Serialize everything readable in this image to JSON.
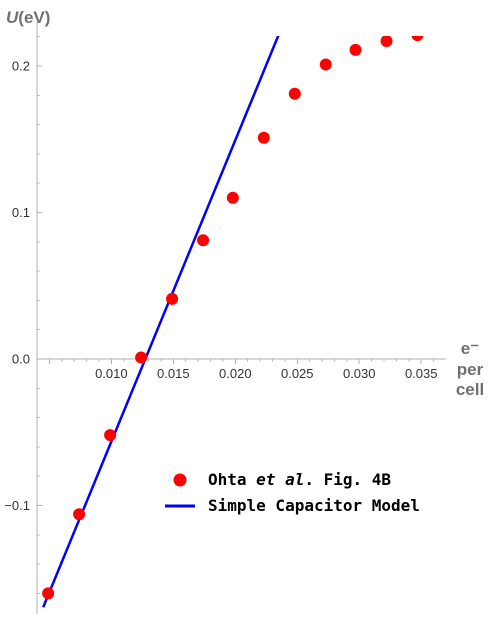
{
  "chart_data": {
    "type": "scatter",
    "xlabel_lines": [
      "e⁻",
      "per",
      "cell"
    ],
    "ylabel": {
      "var": "U",
      "unit": "(eV)"
    },
    "xlim": [
      0.004,
      0.037
    ],
    "ylim": [
      -0.17,
      0.23
    ],
    "x_ticks": [
      0.01,
      0.015,
      0.02,
      0.025,
      0.03,
      0.035
    ],
    "x_tick_labels": [
      "0.010",
      "0.015",
      "0.020",
      "0.025",
      "0.030",
      "0.035"
    ],
    "y_ticks": [
      -0.1,
      0.0,
      0.1,
      0.2
    ],
    "y_tick_labels": [
      "−0.1",
      "0.0",
      "0.1",
      "0.2"
    ],
    "grid": false,
    "legend_position": "bottom-right",
    "series": [
      {
        "name": "Ohta et al. Fig. 4B",
        "legend_parts": [
          "Ohta ",
          "et al",
          ". Fig. 4B"
        ],
        "kind": "scatter",
        "color": "#ff0000",
        "x": [
          0.0049,
          0.0074,
          0.0099,
          0.0124,
          0.0149,
          0.0174,
          0.0198,
          0.0223,
          0.0248,
          0.0273,
          0.0297,
          0.0322,
          0.0347
        ],
        "y": [
          -0.16,
          -0.106,
          -0.052,
          0.001,
          0.041,
          0.081,
          0.11,
          0.151,
          0.181,
          0.201,
          0.211,
          0.217,
          0.221
        ]
      },
      {
        "name": "Simple Capacitor Model",
        "kind": "line",
        "color": "#0000ff",
        "x": [
          0.0045,
          0.024
        ],
        "y": [
          -0.1695,
          0.2316
        ]
      }
    ]
  }
}
